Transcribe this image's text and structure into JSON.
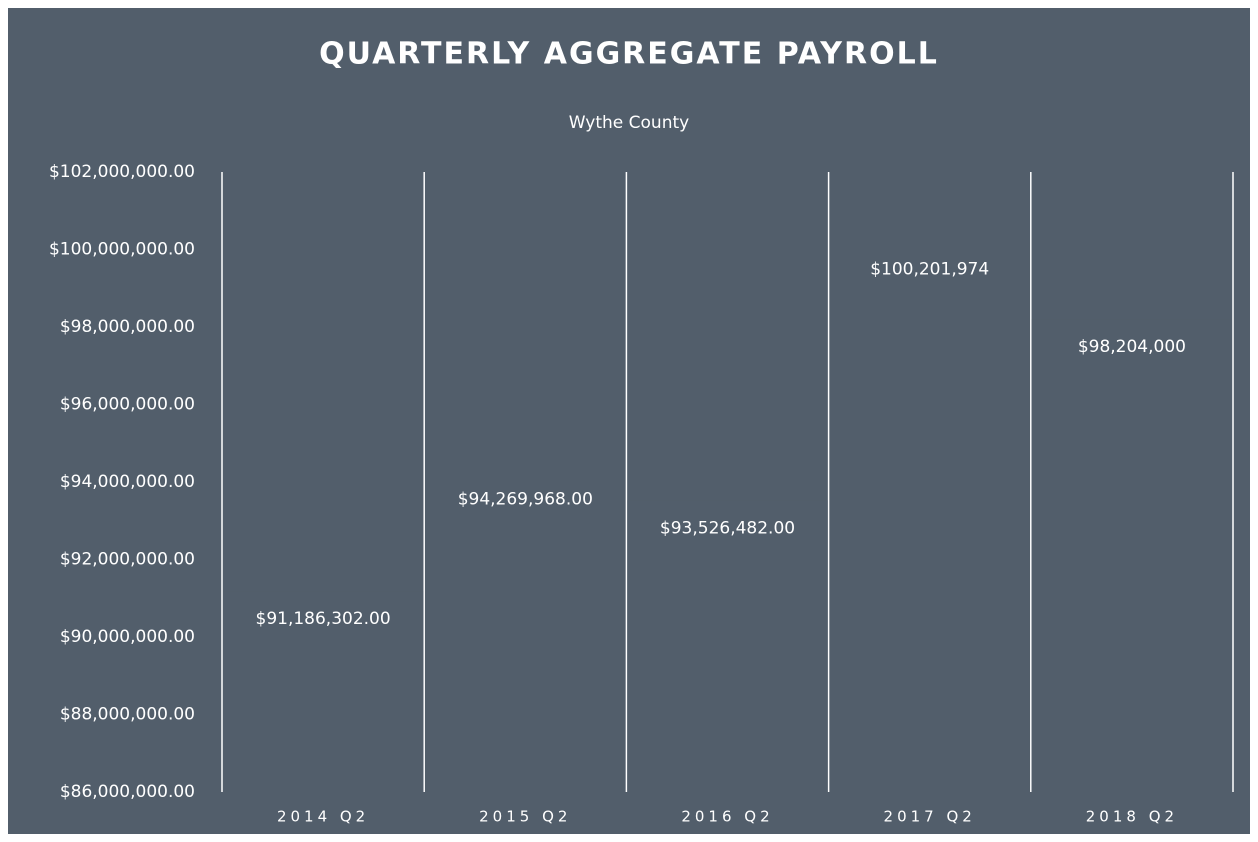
{
  "chart_data": {
    "type": "bar",
    "title": "QUARTERLY AGGREGATE PAYROLL",
    "subtitle": "Wythe County",
    "categories": [
      "2014 Q2",
      "2015 Q2",
      "2016 Q2",
      "2017 Q2",
      "2018 Q2"
    ],
    "values": [
      91186302,
      94269968,
      93526482,
      100201974,
      98204000
    ],
    "value_labels": [
      "$91,186,302.00",
      "$94,269,968.00",
      "$93,526,482.00",
      "$100,201,974",
      "$98,204,000"
    ],
    "color": "#525e6b",
    "ylim": [
      86000000,
      102000000
    ],
    "yticks": [
      {
        "value": 86000000,
        "label": "$86,000,000.00"
      },
      {
        "value": 88000000,
        "label": "$88,000,000.00"
      },
      {
        "value": 90000000,
        "label": "$90,000,000.00"
      },
      {
        "value": 92000000,
        "label": "$92,000,000.00"
      },
      {
        "value": 94000000,
        "label": "$94,000,000.00"
      },
      {
        "value": 96000000,
        "label": "$96,000,000.00"
      },
      {
        "value": 98000000,
        "label": "$98,000,000.00"
      },
      {
        "value": 100000000,
        "label": "$100,000,000.00"
      },
      {
        "value": 102000000,
        "label": "$102,000,000.00"
      }
    ],
    "grid": false
  }
}
